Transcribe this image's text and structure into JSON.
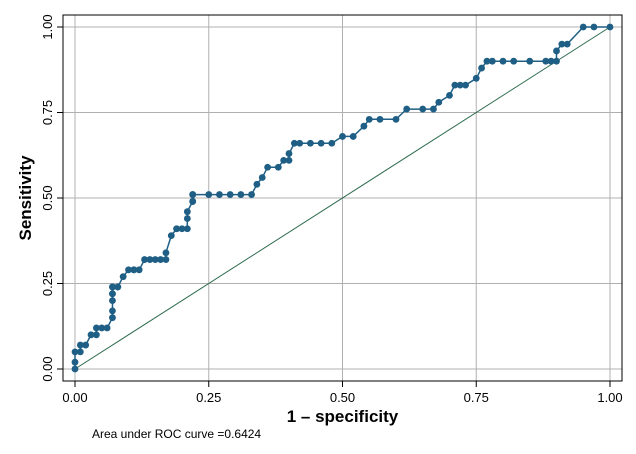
{
  "chart_data": {
    "type": "line",
    "xlabel": "1 – specificity",
    "ylabel": "Sensitivity",
    "xlim": [
      0,
      1
    ],
    "ylim": [
      0,
      1
    ],
    "x_ticks": [
      "0.00",
      "0.25",
      "0.50",
      "0.75",
      "1.00"
    ],
    "y_ticks": [
      "0.00",
      "0.25",
      "0.50",
      "0.75",
      "1.00"
    ],
    "grid": true,
    "colors": {
      "roc": "#1f5f85",
      "reference": "#2e6b4e",
      "grid": "#b0b0b0"
    },
    "annotation": "Area under ROC curve =0.6424",
    "series": [
      {
        "x": [
          0,
          0,
          0,
          0.01,
          0.01,
          0.02,
          0.03,
          0.04,
          0.04,
          0.05,
          0.06,
          0.07,
          0.07,
          0.07,
          0.07,
          0.07,
          0.07,
          0.07,
          0.08,
          0.08,
          0.09,
          0.1,
          0.11,
          0.11,
          0.12,
          0.13,
          0.14,
          0.15,
          0.16,
          0.17,
          0.17,
          0.18,
          0.19,
          0.19,
          0.2,
          0.21,
          0.21,
          0.21,
          0.22,
          0.22,
          0.22,
          0.22,
          0.25,
          0.27,
          0.29,
          0.31,
          0.33,
          0.34,
          0.35,
          0.36,
          0.38,
          0.39,
          0.4,
          0.4,
          0.41,
          0.42,
          0.44,
          0.46,
          0.48,
          0.5,
          0.52,
          0.54,
          0.55,
          0.57,
          0.6,
          0.62,
          0.65,
          0.67,
          0.68,
          0.7,
          0.71,
          0.72,
          0.73,
          0.75,
          0.76,
          0.77,
          0.78,
          0.8,
          0.82,
          0.85,
          0.88,
          0.89,
          0.9,
          0.9,
          0.91,
          0.92,
          0.95,
          0.97,
          1.0
        ],
        "y": [
          0,
          0.02,
          0.05,
          0.05,
          0.07,
          0.07,
          0.1,
          0.1,
          0.12,
          0.12,
          0.12,
          0.15,
          0.17,
          0.2,
          0.22,
          0.22,
          0.24,
          0.24,
          0.24,
          0.24,
          0.27,
          0.29,
          0.29,
          0.29,
          0.29,
          0.32,
          0.32,
          0.32,
          0.32,
          0.32,
          0.34,
          0.39,
          0.41,
          0.41,
          0.41,
          0.41,
          0.44,
          0.46,
          0.49,
          0.49,
          0.51,
          0.51,
          0.51,
          0.51,
          0.51,
          0.51,
          0.51,
          0.54,
          0.56,
          0.59,
          0.59,
          0.61,
          0.61,
          0.63,
          0.66,
          0.66,
          0.66,
          0.66,
          0.66,
          0.68,
          0.68,
          0.71,
          0.73,
          0.73,
          0.73,
          0.76,
          0.76,
          0.76,
          0.78,
          0.8,
          0.83,
          0.83,
          0.83,
          0.85,
          0.88,
          0.9,
          0.9,
          0.9,
          0.9,
          0.9,
          0.9,
          0.9,
          0.9,
          0.93,
          0.95,
          0.95,
          1.0,
          1.0,
          1.0
        ]
      }
    ]
  }
}
